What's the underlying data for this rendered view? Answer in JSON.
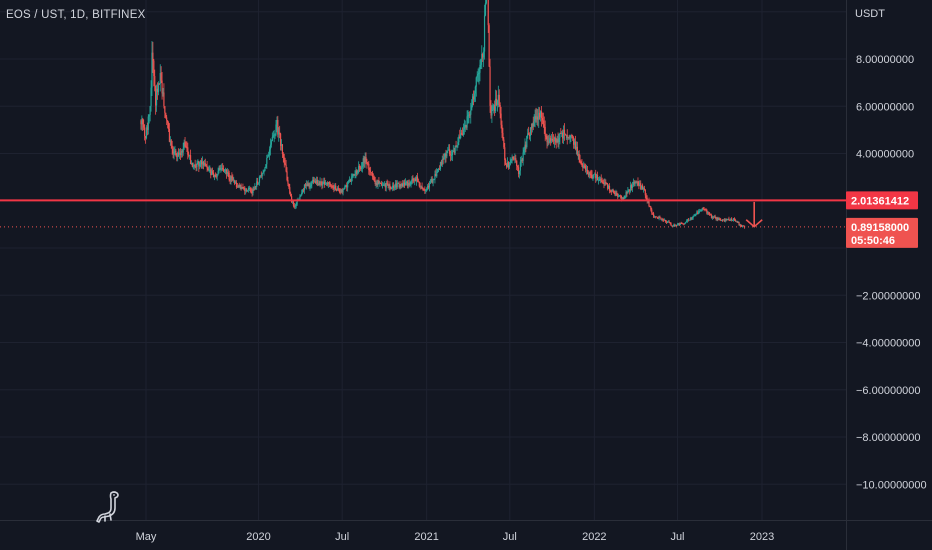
{
  "header": {
    "symbol_title": "EOS / UST, 1D, BITFINEX",
    "currency": "USDT"
  },
  "colors": {
    "background": "#131722",
    "grid": "#1e2230",
    "up": "#26a69a",
    "down": "#ef5350",
    "horizontal_line": "#f23645",
    "text": "#d1d4dc"
  },
  "price_tags": {
    "level": "2.01361412",
    "last_price": "0.89158000",
    "countdown": "05:50:46"
  },
  "logo_icon": "dinosaur-icon",
  "chart_data": {
    "type": "candlestick",
    "title": "EOS / UST, 1D, BITFINEX",
    "y_unit": "USDT",
    "ylim": [
      -11.8,
      11.8
    ],
    "y_ticks": [
      8,
      6,
      4,
      -2,
      -4,
      -6,
      -8,
      -10
    ],
    "y_tick_labels": [
      "8.00000000",
      "6.00000000",
      "4.00000000",
      "−2.00000000",
      "−4.00000000",
      "−6.00000000",
      "−8.00000000",
      "−10.00000000"
    ],
    "x_tick_labels": [
      "May",
      "2020",
      "Jul",
      "2021",
      "Jul",
      "2022",
      "Jul",
      "2023"
    ],
    "x_tick_dates": [
      "2019-05-01",
      "2020-01-01",
      "2020-07-01",
      "2021-01-01",
      "2021-07-01",
      "2022-01-01",
      "2022-07-01",
      "2023-01-01"
    ],
    "horizontal_line": {
      "value": 2.01361412,
      "color": "#f23645"
    },
    "last_price": 0.89158,
    "grid": true,
    "annotations": [
      {
        "type": "down-arrow",
        "date": "2022-12-15",
        "from": 1.95,
        "to": 0.9
      }
    ],
    "price_path": [
      [
        "2019-04-20",
        5.4
      ],
      [
        "2019-04-30",
        4.7
      ],
      [
        "2019-05-10",
        5.9
      ],
      [
        "2019-05-15",
        8.5
      ],
      [
        "2019-05-22",
        6.2
      ],
      [
        "2019-06-01",
        7.5
      ],
      [
        "2019-06-10",
        6.0
      ],
      [
        "2019-06-25",
        4.2
      ],
      [
        "2019-07-10",
        3.9
      ],
      [
        "2019-07-25",
        4.4
      ],
      [
        "2019-08-10",
        3.4
      ],
      [
        "2019-09-01",
        3.7
      ],
      [
        "2019-09-25",
        3.0
      ],
      [
        "2019-10-15",
        3.4
      ],
      [
        "2019-11-10",
        2.7
      ],
      [
        "2019-12-01",
        2.5
      ],
      [
        "2019-12-20",
        2.4
      ],
      [
        "2020-01-15",
        3.4
      ],
      [
        "2020-02-10",
        5.2
      ],
      [
        "2020-02-20",
        4.3
      ],
      [
        "2020-03-12",
        2.0
      ],
      [
        "2020-03-20",
        1.8
      ],
      [
        "2020-04-10",
        2.6
      ],
      [
        "2020-05-01",
        2.8
      ],
      [
        "2020-06-01",
        2.7
      ],
      [
        "2020-07-01",
        2.4
      ],
      [
        "2020-08-01",
        3.2
      ],
      [
        "2020-08-20",
        3.8
      ],
      [
        "2020-09-10",
        2.8
      ],
      [
        "2020-10-15",
        2.6
      ],
      [
        "2020-11-15",
        2.7
      ],
      [
        "2020-12-10",
        2.9
      ],
      [
        "2020-12-25",
        2.4
      ],
      [
        "2021-01-15",
        2.9
      ],
      [
        "2021-02-10",
        4.0
      ],
      [
        "2021-03-01",
        4.1
      ],
      [
        "2021-04-01",
        5.5
      ],
      [
        "2021-04-20",
        7.0
      ],
      [
        "2021-05-05",
        8.5
      ],
      [
        "2021-05-12",
        11.8
      ],
      [
        "2021-05-20",
        5.5
      ],
      [
        "2021-06-05",
        6.5
      ],
      [
        "2021-06-22",
        3.4
      ],
      [
        "2021-07-10",
        3.8
      ],
      [
        "2021-07-20",
        3.2
      ],
      [
        "2021-08-10",
        4.8
      ],
      [
        "2021-09-05",
        5.8
      ],
      [
        "2021-09-20",
        4.4
      ],
      [
        "2021-10-05",
        4.6
      ],
      [
        "2021-10-25",
        4.8
      ],
      [
        "2021-11-10",
        4.9
      ],
      [
        "2021-12-05",
        3.5
      ],
      [
        "2021-12-25",
        3.1
      ],
      [
        "2022-01-15",
        2.9
      ],
      [
        "2022-02-10",
        2.4
      ],
      [
        "2022-03-05",
        2.1
      ],
      [
        "2022-04-01",
        2.9
      ],
      [
        "2022-04-20",
        2.4
      ],
      [
        "2022-05-10",
        1.3
      ],
      [
        "2022-06-01",
        1.2
      ],
      [
        "2022-06-20",
        0.95
      ],
      [
        "2022-07-15",
        1.05
      ],
      [
        "2022-08-10",
        1.4
      ],
      [
        "2022-08-25",
        1.7
      ],
      [
        "2022-09-10",
        1.35
      ],
      [
        "2022-10-10",
        1.15
      ],
      [
        "2022-11-01",
        1.25
      ],
      [
        "2022-11-15",
        0.95
      ],
      [
        "2022-11-25",
        0.89
      ]
    ]
  }
}
